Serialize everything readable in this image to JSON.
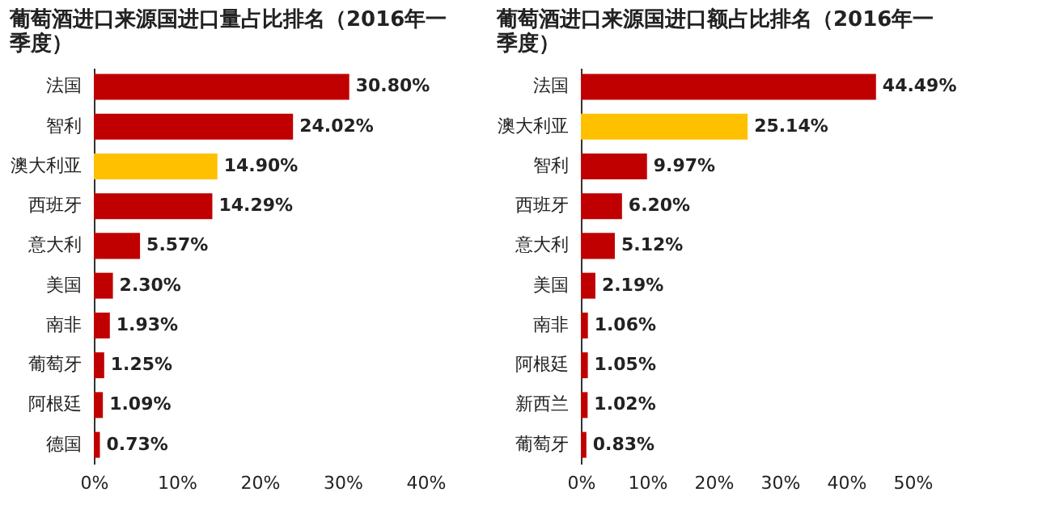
{
  "chart_data": [
    {
      "type": "bar",
      "orientation": "horizontal",
      "title": "葡萄酒进口来源国进口量占比排名（2016年一季度）",
      "categories": [
        "法国",
        "智利",
        "澳大利亚",
        "西班牙",
        "意大利",
        "美国",
        "南非",
        "葡萄牙",
        "阿根廷",
        "德国"
      ],
      "values": [
        30.8,
        24.02,
        14.9,
        14.29,
        5.57,
        2.3,
        1.93,
        1.25,
        1.09,
        0.73
      ],
      "colors": [
        "#c00000",
        "#c00000",
        "#ffc000",
        "#c00000",
        "#c00000",
        "#c00000",
        "#c00000",
        "#c00000",
        "#c00000",
        "#c00000"
      ],
      "value_labels": [
        "30.80%",
        "24.02%",
        "14.90%",
        "14.29%",
        "5.57%",
        "2.30%",
        "1.93%",
        "1.25%",
        "1.09%",
        "0.73%"
      ],
      "xlim": [
        0,
        40
      ],
      "xticks": [
        {
          "value": 0,
          "label": "0%"
        },
        {
          "value": 10,
          "label": "10%"
        },
        {
          "value": 20,
          "label": "20%"
        },
        {
          "value": 30,
          "label": "30%"
        },
        {
          "value": 40,
          "label": "40%"
        }
      ]
    },
    {
      "type": "bar",
      "orientation": "horizontal",
      "title": "葡萄酒进口来源国进口额占比排名（2016年一季度）",
      "categories": [
        "法国",
        "澳大利亚",
        "智利",
        "西班牙",
        "意大利",
        "美国",
        "南非",
        "阿根廷",
        "新西兰",
        "葡萄牙"
      ],
      "values": [
        44.49,
        25.14,
        9.97,
        6.2,
        5.12,
        2.19,
        1.06,
        1.05,
        1.02,
        0.83
      ],
      "colors": [
        "#c00000",
        "#ffc000",
        "#c00000",
        "#c00000",
        "#c00000",
        "#c00000",
        "#c00000",
        "#c00000",
        "#c00000",
        "#c00000"
      ],
      "value_labels": [
        "44.49%",
        "25.14%",
        "9.97%",
        "6.20%",
        "5.12%",
        "2.19%",
        "1.06%",
        "1.05%",
        "1.02%",
        "0.83%"
      ],
      "xlim": [
        0,
        50
      ],
      "xticks": [
        {
          "value": 0,
          "label": "0%"
        },
        {
          "value": 10,
          "label": "10%"
        },
        {
          "value": 20,
          "label": "20%"
        },
        {
          "value": 30,
          "label": "30%"
        },
        {
          "value": 40,
          "label": "40%"
        },
        {
          "value": 50,
          "label": "50%"
        }
      ]
    }
  ]
}
